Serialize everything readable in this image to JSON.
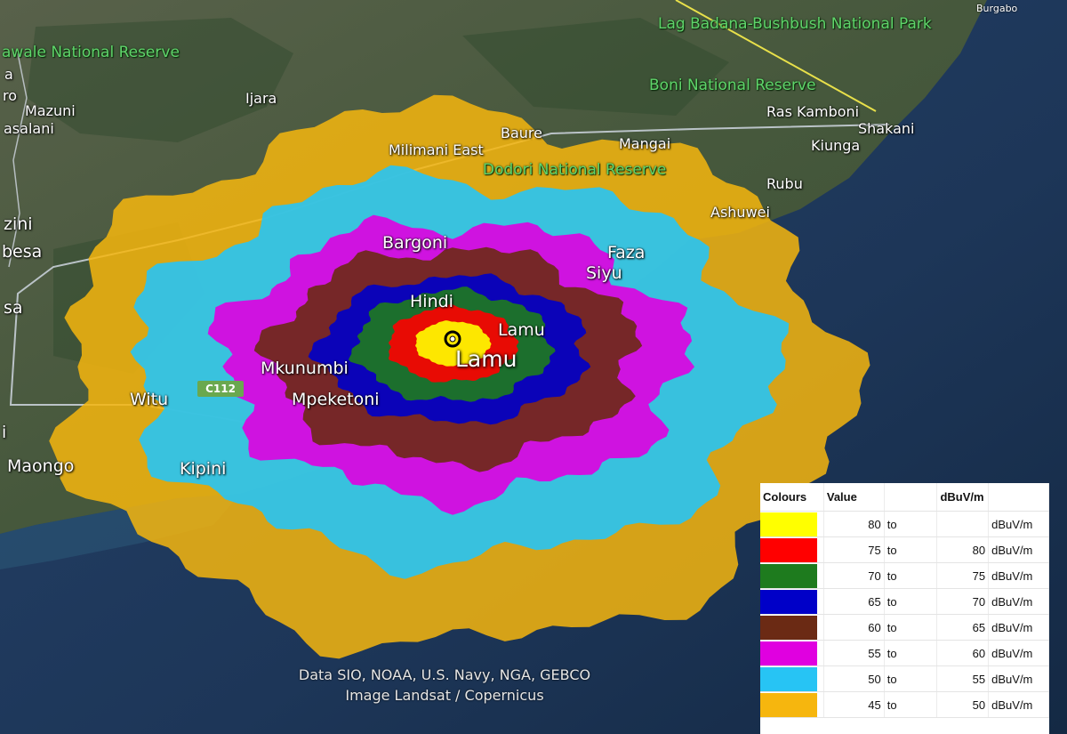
{
  "map": {
    "transmitter_site": "Lamu",
    "place_labels": {
      "wawale_reserve": "awale National Reserve",
      "lag_badana": "Lag Badana-Bushbush National Park",
      "burgabo": "Burgabo",
      "ijara": "Ijara",
      "mazuni": "Mazuni",
      "asalani": "asalani",
      "ra": "a",
      "ro": "ro",
      "boni": "Boni National Reserve",
      "ras_kamboni": "Ras Kamboni",
      "baure": "Baure",
      "mangai": "Mangai",
      "shakani": "Shakani",
      "kiunga": "Kiunga",
      "milimani_east": "Milimani East",
      "dodori": "Dodori National Reserve",
      "rubu": "Rubu",
      "ashuwei": "Ashuwei",
      "zini": "zini",
      "besa": "besa",
      "sa": "sa",
      "bargoni": "Bargoni",
      "faza": "Faza",
      "siyu": "Siyu",
      "hindi": "Hindi",
      "lamu_small": "Lamu",
      "lamu_large": "Lamu",
      "mkunumbi": "Mkunumbi",
      "mpeketoni": "Mpeketoni",
      "witu": "Witu",
      "i": "i",
      "maongo": "Maongo",
      "kipini": "Kipini"
    },
    "road_badge": "C112",
    "credits": {
      "line1": "Data SIO, NOAA, U.S. Navy, NGA, GEBCO",
      "line2": "Image Landsat / Copernicus"
    }
  },
  "legend": {
    "headers": {
      "colours": "Colours",
      "value": "Value",
      "unit": "dBuV/m"
    },
    "rows": [
      {
        "color": "#ffff00",
        "min": "80",
        "to": "to",
        "max": "",
        "unit": "dBuV/m"
      },
      {
        "color": "#ff0000",
        "min": "75",
        "to": "to",
        "max": "80",
        "unit": "dBuV/m"
      },
      {
        "color": "#1e7b1e",
        "min": "70",
        "to": "to",
        "max": "75",
        "unit": "dBuV/m"
      },
      {
        "color": "#0000c8",
        "min": "65",
        "to": "to",
        "max": "70",
        "unit": "dBuV/m"
      },
      {
        "color": "#6b2a14",
        "min": "60",
        "to": "to",
        "max": "65",
        "unit": "dBuV/m"
      },
      {
        "color": "#e000e0",
        "min": "55",
        "to": "to",
        "max": "60",
        "unit": "dBuV/m"
      },
      {
        "color": "#27c4f4",
        "min": "50",
        "to": "to",
        "max": "55",
        "unit": "dBuV/m"
      },
      {
        "color": "#f6b60e",
        "min": "45",
        "to": "to",
        "max": "50",
        "unit": "dBuV/m"
      }
    ]
  }
}
